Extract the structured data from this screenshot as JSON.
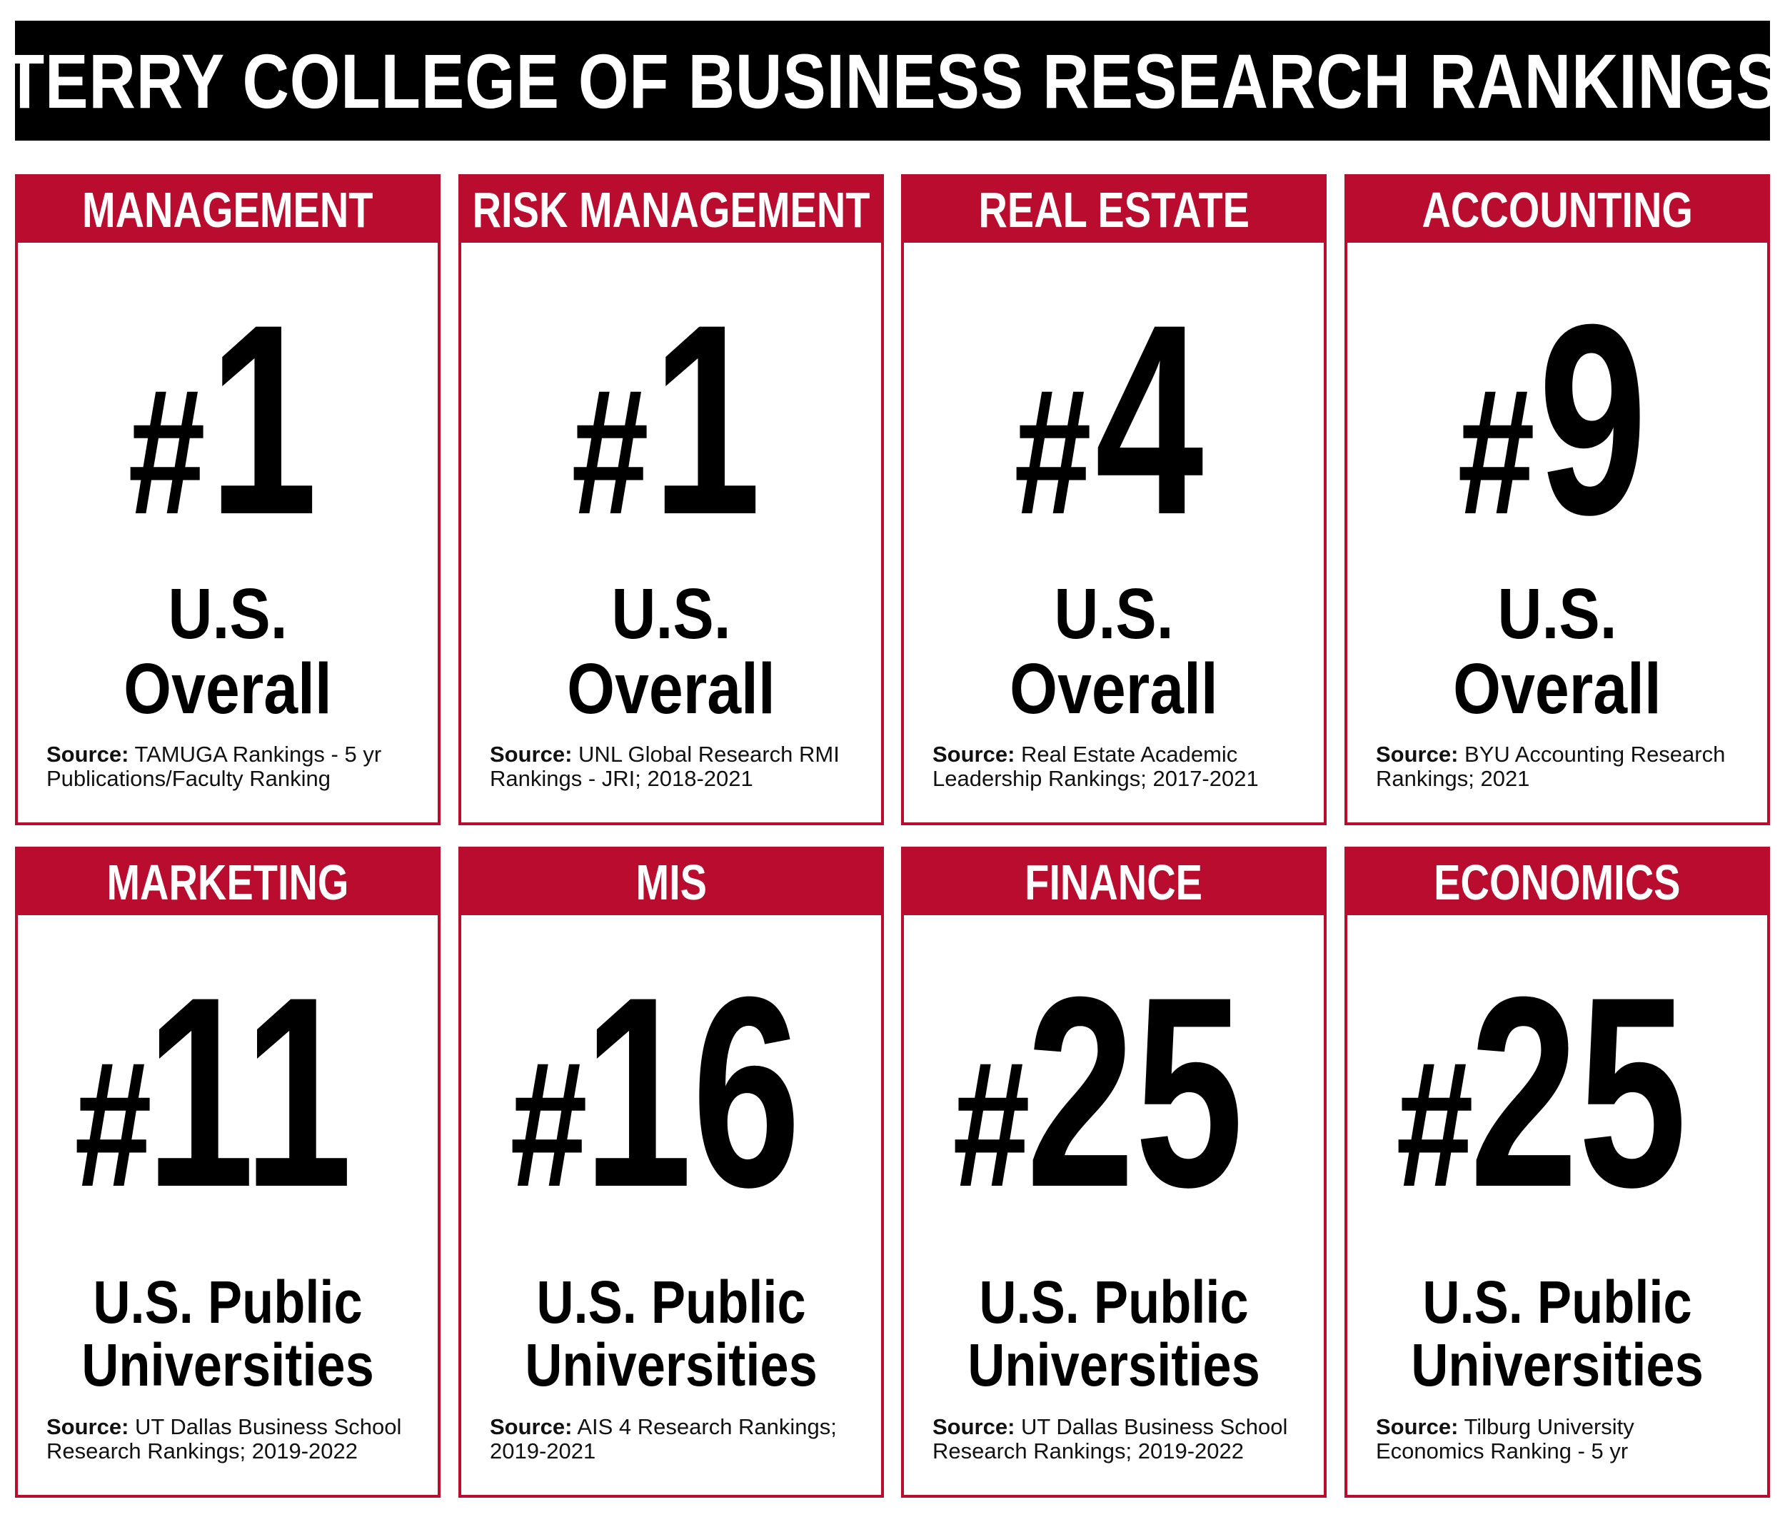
{
  "title": "TERRY COLLEGE OF BUSINESS RESEARCH RANKINGS",
  "accent_color": "#BA0C2F",
  "source_prefix": "Source:",
  "rankings": [
    {
      "field": "MANAGEMENT",
      "rank_symbol": "#",
      "rank_value": "1",
      "scope_line1": "U.S.",
      "scope_line2": "Overall",
      "source_line1": "TAMUGA Rankings - 5 yr",
      "source_line2": "Publications/Faculty Ranking"
    },
    {
      "field": "RISK MANAGEMENT",
      "rank_symbol": "#",
      "rank_value": "1",
      "scope_line1": "U.S.",
      "scope_line2": "Overall",
      "source_line1": "UNL Global Research RMI",
      "source_line2": "Rankings - JRI; 2018-2021"
    },
    {
      "field": "REAL ESTATE",
      "rank_symbol": "#",
      "rank_value": "4",
      "scope_line1": "U.S.",
      "scope_line2": "Overall",
      "source_line1": "Real Estate Academic",
      "source_line2": "Leadership Rankings; 2017-2021"
    },
    {
      "field": "ACCOUNTING",
      "rank_symbol": "#",
      "rank_value": "9",
      "scope_line1": "U.S.",
      "scope_line2": "Overall",
      "source_line1": "BYU Accounting Research",
      "source_line2": "Rankings; 2021"
    },
    {
      "field": "MARKETING",
      "rank_symbol": "#",
      "rank_value": "11",
      "scope_line1": "U.S. Public",
      "scope_line2": "Universities",
      "source_line1": "UT Dallas Business School",
      "source_line2": "Research Rankings; 2019-2022"
    },
    {
      "field": "MIS",
      "rank_symbol": "#",
      "rank_value": "16",
      "scope_line1": "U.S. Public",
      "scope_line2": "Universities",
      "source_line1": "AIS 4 Research Rankings;",
      "source_line2": "2019-2021"
    },
    {
      "field": "FINANCE",
      "rank_symbol": "#",
      "rank_value": "25",
      "scope_line1": "U.S. Public",
      "scope_line2": "Universities",
      "source_line1": "UT Dallas Business School",
      "source_line2": "Research Rankings; 2019-2022"
    },
    {
      "field": "ECONOMICS",
      "rank_symbol": "#",
      "rank_value": "25",
      "scope_line1": "U.S. Public",
      "scope_line2": "Universities",
      "source_line1": "Tilburg University",
      "source_line2": "Economics Ranking - 5 yr"
    }
  ]
}
